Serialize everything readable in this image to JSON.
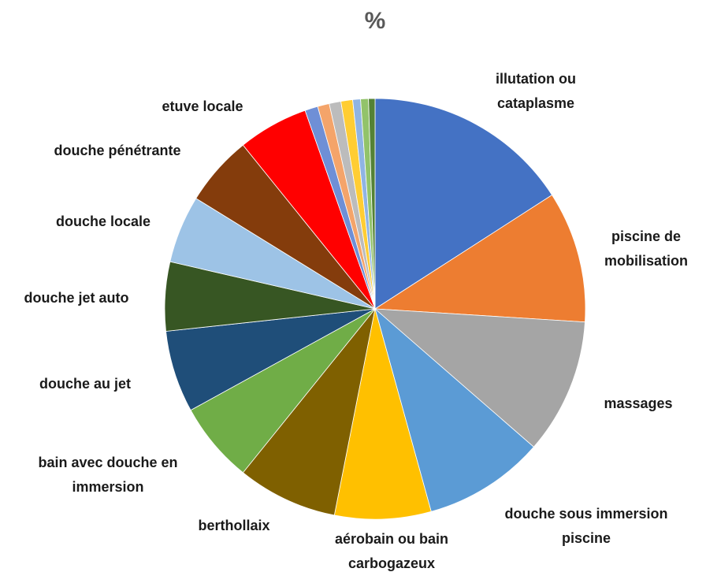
{
  "chart_data": {
    "type": "pie",
    "title": "%",
    "categories": [
      "illutation ou cataplasme",
      "piscine de mobilisation",
      "massages",
      "douche sous immersion piscine",
      "aérobain ou bain carbogazeux",
      "berthollaix",
      "bain avec douche en immersion",
      "douche au jet",
      "douche jet auto",
      "douche locale",
      "douche pénétrante",
      "etuve locale",
      null,
      null,
      null,
      null,
      null,
      null,
      null
    ],
    "values": [
      15.9,
      10.1,
      10.4,
      9.3,
      7.4,
      7.7,
      6.2,
      6.3,
      5.3,
      5.2,
      5.4,
      5.4,
      1.0,
      0.9,
      0.9,
      0.9,
      0.6,
      0.6,
      0.5
    ],
    "colors": [
      "#4472c4",
      "#ed7d31",
      "#a5a5a5",
      "#5b9bd5",
      "#ffc000",
      "#7f6000",
      "#70ad47",
      "#1f4e79",
      "#375623",
      "#9dc3e6",
      "#843c0c",
      "#ff0000",
      "#6f8fd6",
      "#f4a46a",
      "#bcbcbc",
      "#ffcd33",
      "#8fb4e3",
      "#92c36a",
      "#548235"
    ]
  }
}
